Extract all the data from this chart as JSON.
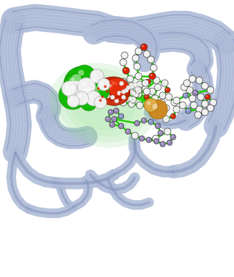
{
  "background_color": "#ffffff",
  "protein_color": "#b0bcd8",
  "protein_edge": "#8090b8",
  "protein_dark": "#7080a8",
  "green_sphere_color": "#11bb00",
  "green_highlight": "#66ee44",
  "white_sphere": "#f0f0f0",
  "red_blob_color": "#cc2200",
  "red_highlight": "#ee5533",
  "green_blob_color": "#88dd88",
  "orange_sphere": "#cc8822",
  "blue_atom": "#8899cc",
  "purple_atom": "#9988bb",
  "red_atom": "#dd2200",
  "green_stick": "#22cc00",
  "figsize": [
    3.38,
    4.0
  ],
  "dpi": 100
}
